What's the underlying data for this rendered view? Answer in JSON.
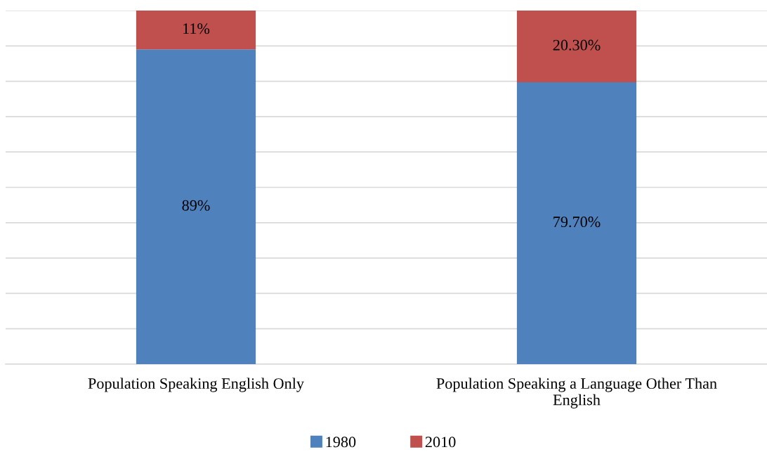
{
  "chart_data": {
    "type": "bar",
    "stacked": true,
    "categories": [
      "Population Speaking English Only",
      "Population Speaking a Language Other Than English"
    ],
    "series": [
      {
        "name": "1980",
        "color": "#4f81bd",
        "values": [
          89,
          79.7
        ],
        "value_labels": [
          "89%",
          "79.70%"
        ]
      },
      {
        "name": "2010",
        "color": "#c0504d",
        "values": [
          11,
          20.3
        ],
        "value_labels": [
          "11%",
          "20.30%"
        ]
      }
    ],
    "ylim": [
      0,
      100
    ],
    "yticks": [
      {
        "value": 0,
        "label": null
      },
      {
        "value": 10,
        "label": null
      },
      {
        "value": 20,
        "label": null
      },
      {
        "value": 30,
        "label": null
      },
      {
        "value": 40,
        "label": null
      },
      {
        "value": 50,
        "label": null
      },
      {
        "value": 60,
        "label": null
      },
      {
        "value": 70,
        "label": null
      },
      {
        "value": 80,
        "label": null
      },
      {
        "value": 90,
        "label": null
      },
      {
        "value": 100,
        "label": null
      }
    ],
    "tick_labels": "x",
    "grid": "y",
    "legend": "bottom"
  }
}
